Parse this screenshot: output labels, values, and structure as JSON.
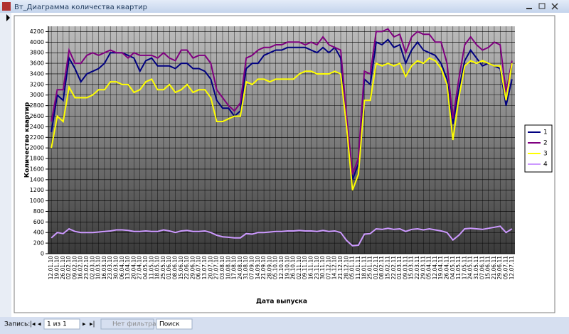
{
  "window": {
    "title": "Вт_Диаграмма количества квартир"
  },
  "chart_data": {
    "type": "line",
    "x_label": "Дата выпуска",
    "y_label": "Количество квартир",
    "categories": [
      "12.01.10",
      "19.01.10",
      "26.01.10",
      "02.02.10",
      "09.02.10",
      "16.02.10",
      "23.02.10",
      "02.03.10",
      "10.03.10",
      "16.03.10",
      "23.03.10",
      "30.03.10",
      "06.04.10",
      "13.04.10",
      "20.04.10",
      "27.04.10",
      "04.05.10",
      "11.05.10",
      "18.05.10",
      "25.05.10",
      "01.06.10",
      "08.06.10",
      "15.06.10",
      "22.06.10",
      "29.06.10",
      "06.07.10",
      "13.07.10",
      "20.07.10",
      "27.07.10",
      "03.08.10",
      "10.08.10",
      "17.08.10",
      "24.08.10",
      "31.08.10",
      "07.09.10",
      "14.09.10",
      "21.09.10",
      "28.09.10",
      "05.10.10",
      "12.10.10",
      "19.10.10",
      "26.10.10",
      "02.11.10",
      "09.11.10",
      "16.11.10",
      "23.11.10",
      "30.11.10",
      "07.12.10",
      "14.12.10",
      "21.12.10",
      "28.12.10",
      "05.01.11",
      "11.01.11",
      "18.01.11",
      "25.01.11",
      "01.02.11",
      "08.02.11",
      "15.02.11",
      "22.02.11",
      "01.03.11",
      "09.03.11",
      "15.03.11",
      "22.03.11",
      "29.03.11",
      "05.04.11",
      "12.04.11",
      "19.04.11",
      "26.04.11",
      "04.05.11",
      "11.05.11",
      "17.05.11",
      "24.05.11",
      "31.05.11",
      "07.06.11",
      "15.06.11",
      "21.06.11",
      "29.06.11",
      "05.07.11",
      "12.07.11"
    ],
    "series": [
      {
        "name": "1",
        "color": "#000080",
        "values": [
          2300,
          3000,
          2900,
          3700,
          3500,
          3250,
          3400,
          3450,
          3500,
          3600,
          3800,
          3800,
          3800,
          3750,
          3700,
          3450,
          3650,
          3700,
          3550,
          3550,
          3550,
          3500,
          3600,
          3600,
          3500,
          3500,
          3450,
          3300,
          2900,
          2750,
          2750,
          2600,
          2700,
          3500,
          3600,
          3600,
          3750,
          3800,
          3850,
          3850,
          3900,
          3900,
          3900,
          3900,
          3850,
          3800,
          3900,
          3800,
          3900,
          3700,
          2500,
          1400,
          1700,
          3300,
          3200,
          4000,
          3950,
          4050,
          3900,
          3950,
          3600,
          3850,
          4000,
          3850,
          3800,
          3750,
          3600,
          3300,
          2450,
          3100,
          3650,
          3850,
          3700,
          3550,
          3600,
          3550,
          3500,
          2800,
          3300
        ]
      },
      {
        "name": "2",
        "color": "#800080",
        "values": [
          2500,
          3100,
          3100,
          3850,
          3600,
          3600,
          3750,
          3800,
          3750,
          3800,
          3850,
          3800,
          3800,
          3700,
          3800,
          3750,
          3750,
          3750,
          3700,
          3800,
          3700,
          3650,
          3850,
          3850,
          3700,
          3750,
          3750,
          3600,
          3100,
          2950,
          2800,
          2700,
          2850,
          3700,
          3750,
          3850,
          3900,
          3900,
          3950,
          3950,
          4000,
          4000,
          4000,
          3950,
          4000,
          3950,
          4100,
          3950,
          3900,
          3850,
          2600,
          1500,
          1800,
          3450,
          3400,
          4200,
          4200,
          4250,
          4100,
          4150,
          3800,
          4100,
          4200,
          4150,
          4150,
          4000,
          4000,
          3600,
          2550,
          3300,
          3950,
          4100,
          3950,
          3850,
          3900,
          4000,
          3950,
          3050,
          3650
        ]
      },
      {
        "name": "3",
        "color": "#ffff00",
        "values": [
          2000,
          2600,
          2500,
          3150,
          2950,
          2950,
          2950,
          3000,
          3100,
          3100,
          3250,
          3250,
          3200,
          3200,
          3050,
          3100,
          3250,
          3300,
          3100,
          3100,
          3200,
          3050,
          3100,
          3200,
          3050,
          3100,
          3100,
          2950,
          2500,
          2500,
          2550,
          2600,
          2600,
          3250,
          3200,
          3300,
          3300,
          3250,
          3300,
          3300,
          3300,
          3300,
          3400,
          3450,
          3450,
          3400,
          3400,
          3400,
          3450,
          3400,
          2400,
          1200,
          1500,
          2900,
          2900,
          3600,
          3550,
          3600,
          3550,
          3600,
          3350,
          3550,
          3650,
          3600,
          3700,
          3650,
          3500,
          3200,
          2150,
          2950,
          3550,
          3650,
          3600,
          3650,
          3600,
          3550,
          3550,
          2900,
          3600
        ]
      },
      {
        "name": "4",
        "color": "#cc99ff",
        "values": [
          300,
          400,
          380,
          470,
          420,
          400,
          400,
          400,
          410,
          420,
          430,
          450,
          450,
          440,
          420,
          420,
          430,
          420,
          420,
          450,
          430,
          400,
          430,
          440,
          420,
          420,
          430,
          400,
          350,
          320,
          310,
          300,
          300,
          380,
          370,
          400,
          400,
          410,
          420,
          420,
          430,
          430,
          440,
          430,
          430,
          420,
          440,
          420,
          430,
          400,
          250,
          150,
          160,
          370,
          380,
          470,
          460,
          480,
          460,
          470,
          420,
          460,
          470,
          450,
          470,
          450,
          430,
          400,
          260,
          350,
          470,
          480,
          470,
          460,
          480,
          500,
          520,
          400,
          470
        ]
      }
    ],
    "ylim": [
      0,
      4300
    ],
    "yticks": [
      0,
      200,
      400,
      600,
      800,
      1000,
      1200,
      1400,
      1600,
      1800,
      2000,
      2200,
      2400,
      2600,
      2800,
      3000,
      3200,
      3400,
      3600,
      3800,
      4000,
      4200
    ],
    "grid": true,
    "legend": "right"
  },
  "navigation": {
    "label": "Запись:",
    "position": "1 из 1",
    "filter": "Нет фильтра",
    "search": "Поиск"
  }
}
